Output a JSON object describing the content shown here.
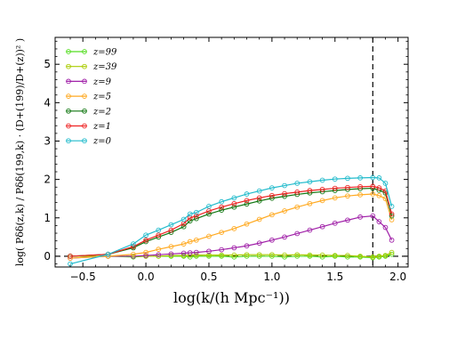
{
  "chart_data": {
    "type": "line",
    "xlabel": "log(k/(h Mpc⁻¹))",
    "ylabel": "log( Pδδ(z,k) / Pδδ(199,k) · (D+(199)/D+(z))² )",
    "xlim": [
      -0.72,
      2.08
    ],
    "ylim": [
      -0.28,
      5.7
    ],
    "xticks": [
      -0.5,
      0.0,
      0.5,
      1.0,
      1.5,
      2.0
    ],
    "xtick_labels": [
      "−0.5",
      "0.0",
      "0.5",
      "1.0",
      "1.5",
      "2.0"
    ],
    "yticks": [
      0,
      1,
      2,
      3,
      4,
      5
    ],
    "ytick_labels": [
      "0",
      "1",
      "2",
      "3",
      "4",
      "5"
    ],
    "grid": false,
    "legend_position": "top-left",
    "reference_lines": [
      {
        "orientation": "vertical",
        "x": 1.8,
        "style": "dashed",
        "color": "#000000"
      },
      {
        "orientation": "horizontal",
        "y": 0.0,
        "style": "dashed",
        "color": "#000000"
      }
    ],
    "x": [
      -0.6,
      -0.3,
      -0.1,
      0.0,
      0.1,
      0.2,
      0.3,
      0.35,
      0.4,
      0.5,
      0.6,
      0.7,
      0.8,
      0.9,
      1.0,
      1.1,
      1.2,
      1.3,
      1.4,
      1.5,
      1.6,
      1.7,
      1.8,
      1.85,
      1.9,
      1.95
    ],
    "series": [
      {
        "name": "z=99",
        "color": "#55dd22",
        "values": [
          0.0,
          0.0,
          -0.02,
          0.0,
          0.0,
          0.0,
          0.0,
          -0.02,
          0.0,
          0.0,
          0.0,
          -0.02,
          0.0,
          0.0,
          0.0,
          -0.02,
          0.0,
          0.0,
          -0.02,
          0.0,
          -0.02,
          -0.02,
          -0.04,
          -0.02,
          0.0,
          0.05
        ]
      },
      {
        "name": "z=39",
        "color": "#aacc00",
        "values": [
          0.0,
          0.0,
          0.0,
          0.0,
          0.0,
          0.02,
          0.02,
          0.03,
          0.03,
          0.03,
          0.03,
          0.03,
          0.04,
          0.04,
          0.04,
          0.03,
          0.04,
          0.03,
          0.03,
          0.02,
          0.02,
          0.0,
          -0.02,
          0.0,
          0.02,
          0.1
        ]
      },
      {
        "name": "z=9",
        "color": "#a020a8",
        "values": [
          -0.05,
          0.0,
          0.0,
          0.02,
          0.04,
          0.06,
          0.08,
          0.09,
          0.1,
          0.13,
          0.17,
          0.22,
          0.27,
          0.34,
          0.42,
          0.5,
          0.59,
          0.68,
          0.77,
          0.86,
          0.94,
          1.02,
          1.05,
          0.9,
          0.75,
          0.42
        ]
      },
      {
        "name": "z=5",
        "color": "#ffaa22",
        "values": [
          -0.05,
          0.0,
          0.05,
          0.1,
          0.18,
          0.25,
          0.32,
          0.38,
          0.42,
          0.52,
          0.62,
          0.72,
          0.84,
          0.96,
          1.08,
          1.18,
          1.28,
          1.37,
          1.45,
          1.52,
          1.57,
          1.6,
          1.62,
          1.58,
          1.5,
          0.95
        ]
      },
      {
        "name": "z=2",
        "color": "#117711",
        "values": [
          0.0,
          0.05,
          0.22,
          0.38,
          0.5,
          0.62,
          0.77,
          0.92,
          0.98,
          1.1,
          1.2,
          1.28,
          1.36,
          1.44,
          1.51,
          1.56,
          1.61,
          1.65,
          1.68,
          1.71,
          1.74,
          1.76,
          1.77,
          1.72,
          1.65,
          1.05
        ]
      },
      {
        "name": "z=1",
        "color": "#ee2222",
        "values": [
          0.0,
          0.05,
          0.25,
          0.42,
          0.55,
          0.68,
          0.85,
          1.0,
          1.05,
          1.18,
          1.28,
          1.37,
          1.45,
          1.52,
          1.58,
          1.63,
          1.67,
          1.71,
          1.74,
          1.77,
          1.79,
          1.81,
          1.82,
          1.78,
          1.7,
          1.1
        ]
      },
      {
        "name": "z=0",
        "color": "#22bbcc",
        "values": [
          -0.2,
          0.05,
          0.32,
          0.55,
          0.68,
          0.82,
          0.96,
          1.1,
          1.14,
          1.3,
          1.42,
          1.52,
          1.62,
          1.7,
          1.78,
          1.84,
          1.9,
          1.94,
          1.98,
          2.01,
          2.03,
          2.04,
          2.05,
          2.04,
          1.9,
          1.3
        ]
      }
    ]
  }
}
